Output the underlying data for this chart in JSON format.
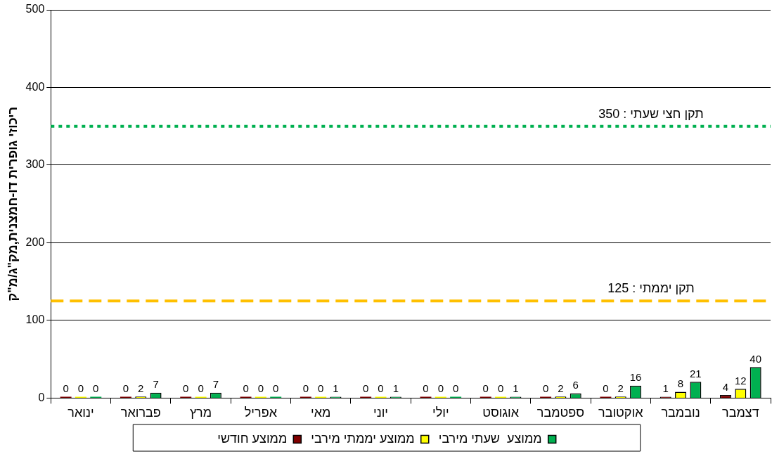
{
  "chart_data": {
    "type": "bar",
    "ylabel": "ריכוזי גופרית דו-חמצנית,מק\"ג/מ\"ק",
    "categories": [
      "ינואר",
      "פברואר",
      "מרץ",
      "אפריל",
      "מאי",
      "יוני",
      "יולי",
      "אוגוסט",
      "ספטמבר",
      "אוקטובר",
      "נובמבר",
      "דצמבר"
    ],
    "series": [
      {
        "name": "ממוצע חודשי",
        "color": "#800000",
        "values": [
          0,
          0,
          0,
          0,
          0,
          0,
          0,
          0,
          0,
          0,
          1,
          4
        ]
      },
      {
        "name": "ממוצע יממתי מירבי",
        "color": "#ffff00",
        "values": [
          0,
          2,
          0,
          0,
          0,
          0,
          0,
          0,
          2,
          2,
          8,
          12
        ]
      },
      {
        "name": "ממוצע  שעתי מירבי",
        "color": "#00b050",
        "values": [
          0,
          7,
          7,
          0,
          1,
          1,
          0,
          1,
          6,
          16,
          21,
          40
        ]
      }
    ],
    "ylim": [
      0,
      500
    ],
    "yticks": [
      0,
      100,
      200,
      300,
      400,
      500
    ],
    "grid": "y",
    "legend": "bottom",
    "data_labels": true,
    "ref_lines": [
      {
        "axis": "y",
        "value": 350,
        "label": "תקן חצי שעתי : 350",
        "color": "#00b050",
        "line_style": "dotted"
      },
      {
        "axis": "y",
        "value": 125,
        "label": "תקן יממתי : 125",
        "color": "#ffc000",
        "line_style": "dashed"
      }
    ]
  }
}
